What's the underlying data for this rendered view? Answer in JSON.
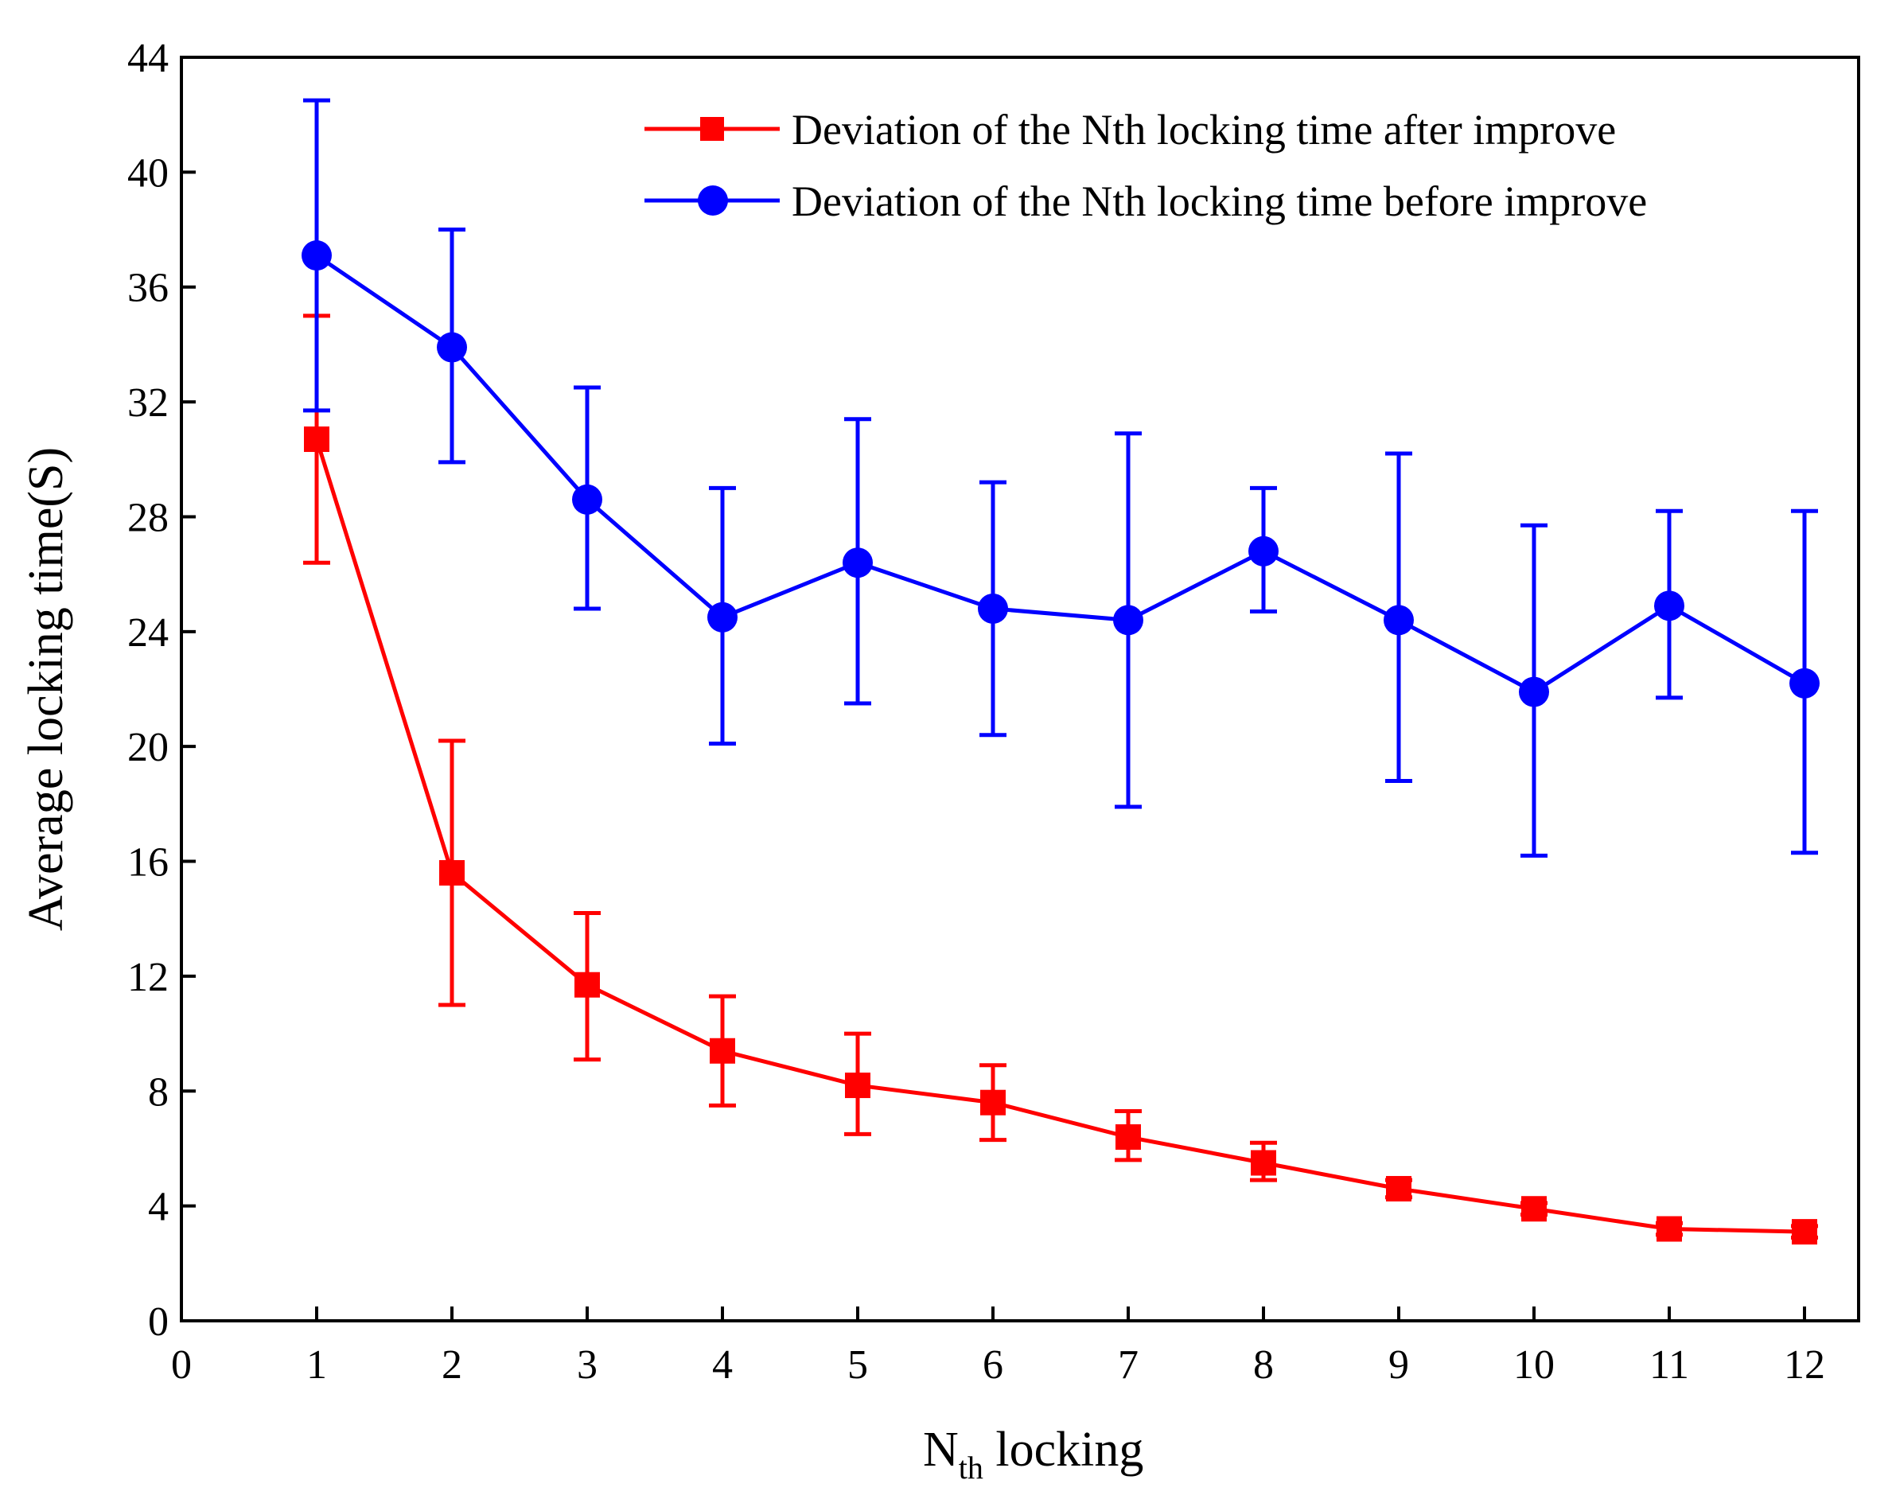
{
  "chart_data": {
    "type": "line",
    "title": "",
    "xlabel_main": "N",
    "xlabel_sub": "th",
    "xlabel_rest": " locking",
    "ylabel": "Average locking time(S)",
    "xlim": [
      0,
      12.4
    ],
    "ylim": [
      0,
      44
    ],
    "xticks": [
      0,
      1,
      2,
      3,
      4,
      5,
      6,
      7,
      8,
      9,
      10,
      11,
      12
    ],
    "yticks": [
      0,
      4,
      8,
      12,
      16,
      20,
      24,
      28,
      32,
      36,
      40,
      44
    ],
    "x": [
      1,
      2,
      3,
      4,
      5,
      6,
      7,
      8,
      9,
      10,
      11,
      12
    ],
    "series": [
      {
        "name": "Deviation of the Nth locking time after improve",
        "color": "#ff0000",
        "marker": "square",
        "values": [
          30.7,
          15.6,
          11.7,
          9.4,
          8.2,
          7.6,
          6.4,
          5.5,
          4.6,
          3.9,
          3.2,
          3.1
        ],
        "err_low": [
          26.4,
          11.0,
          9.1,
          7.5,
          6.5,
          6.3,
          5.6,
          4.9,
          4.3,
          3.7,
          3.0,
          2.9
        ],
        "err_high": [
          35.0,
          20.2,
          14.2,
          11.3,
          10.0,
          8.9,
          7.3,
          6.2,
          4.9,
          4.1,
          3.4,
          3.3
        ]
      },
      {
        "name": "Deviation of the Nth locking time before improve",
        "color": "#0000ff",
        "marker": "circle",
        "values": [
          37.1,
          33.9,
          28.6,
          24.5,
          26.4,
          24.8,
          24.4,
          26.8,
          24.4,
          21.9,
          24.9,
          22.2
        ],
        "err_low": [
          31.7,
          29.9,
          24.8,
          20.1,
          21.5,
          20.4,
          17.9,
          24.7,
          18.8,
          16.2,
          21.7,
          16.3
        ],
        "err_high": [
          42.5,
          38.0,
          32.5,
          29.0,
          31.4,
          29.2,
          30.9,
          29.0,
          30.2,
          27.7,
          28.2,
          28.2
        ]
      }
    ],
    "legend_position": "top-right"
  }
}
